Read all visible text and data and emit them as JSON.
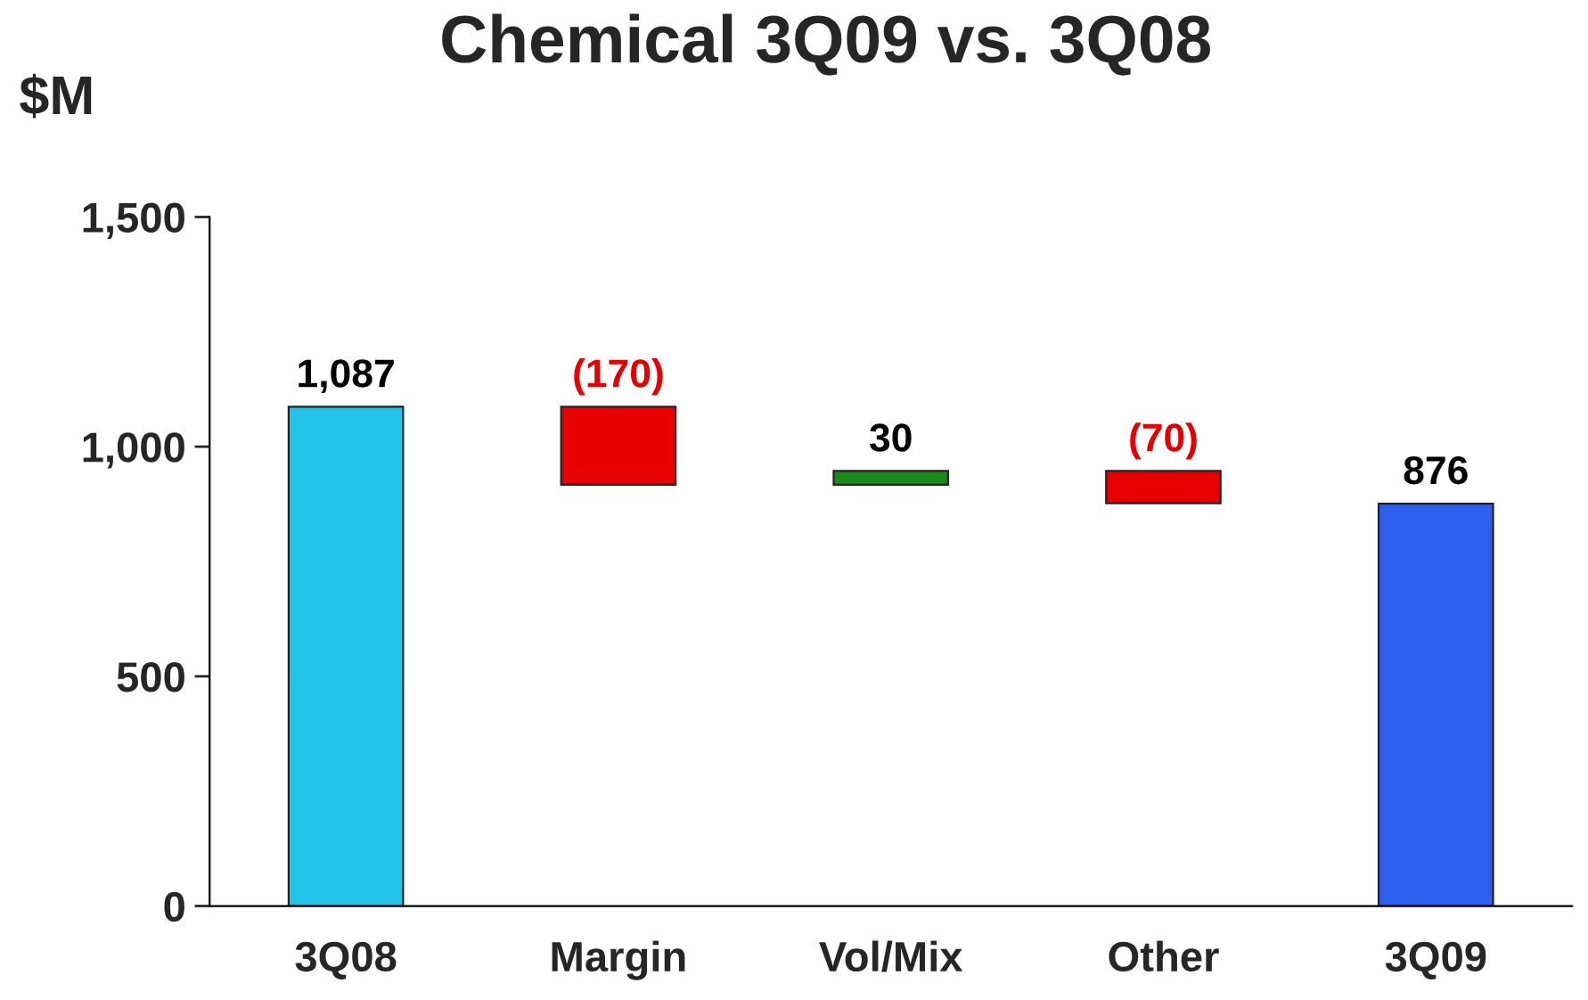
{
  "chart_data": {
    "type": "bar",
    "title": "Chemical 3Q09 vs. 3Q08",
    "ylabel": "$M",
    "categories": [
      "3Q08",
      "Margin",
      "Vol/Mix",
      "Other",
      "3Q09"
    ],
    "values": [
      1087,
      -170,
      30,
      -70,
      876
    ],
    "base": [
      0,
      1087,
      917,
      947,
      0
    ],
    "colors": [
      "#22c4ea",
      "#e80000",
      "#1a8a1a",
      "#e80000",
      "#2f5fef"
    ],
    "value_labels": [
      "1,087",
      "(170)",
      "30",
      "(70)",
      "876"
    ],
    "ylim": [
      0,
      1500
    ],
    "yticks": [
      0,
      500,
      {
        "value": 1000,
        "label": "1,000"
      },
      {
        "value": 1500,
        "label": "1,500"
      }
    ],
    "grid": false,
    "legend": false
  }
}
